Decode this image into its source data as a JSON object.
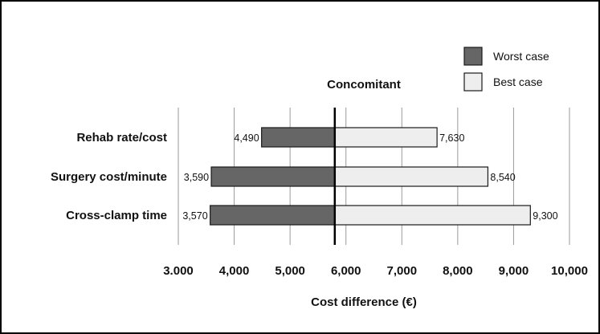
{
  "chart_data": {
    "type": "bar",
    "orientation": "horizontal",
    "subtype": "tornado",
    "title": "Concomitant",
    "xlabel": "Cost difference (€)",
    "ylabel": "",
    "xlim": [
      3000,
      10000
    ],
    "xticks": [
      3000,
      4000,
      5000,
      6000,
      7000,
      8000,
      9000,
      10000
    ],
    "xtick_labels": [
      "3.000",
      "4,000",
      "5,000",
      "6,000",
      "7,000",
      "8,000",
      "9,000",
      "10,000"
    ],
    "baseline": 5800,
    "categories": [
      "Rehab rate/cost",
      "Surgery cost/minute",
      "Cross-clamp time"
    ],
    "series": [
      {
        "name": "Worst case",
        "color": "#666666",
        "values": [
          4490,
          3590,
          3570
        ],
        "labels": [
          "4,490",
          "3,590",
          "3,570"
        ]
      },
      {
        "name": "Best case",
        "color": "#eeeeee",
        "values": [
          7630,
          8540,
          9300
        ],
        "labels": [
          "7,630",
          "8,540",
          "9,300"
        ]
      }
    ],
    "grid": "vertical",
    "legend_position": "top-right"
  }
}
